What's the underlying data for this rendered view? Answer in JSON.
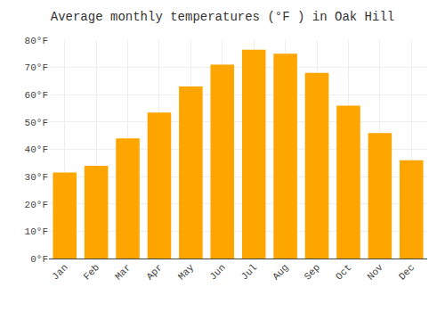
{
  "chart_data": {
    "type": "bar",
    "title": "Average monthly temperatures (°F ) in Oak Hill",
    "categories": [
      "Jan",
      "Feb",
      "Mar",
      "Apr",
      "May",
      "Jun",
      "Jul",
      "Aug",
      "Sep",
      "Oct",
      "Nov",
      "Dec"
    ],
    "values": [
      31.5,
      34,
      44,
      53.5,
      63,
      71,
      76.5,
      75,
      68,
      56,
      46,
      36
    ],
    "color": "#FFA500",
    "ylim": [
      0,
      80
    ],
    "yticks": [
      {
        "value": 0,
        "label": "0°F"
      },
      {
        "value": 10,
        "label": "10°F"
      },
      {
        "value": 20,
        "label": "20°F"
      },
      {
        "value": 30,
        "label": "30°F"
      },
      {
        "value": 40,
        "label": "40°F"
      },
      {
        "value": 50,
        "label": "50°F"
      },
      {
        "value": 60,
        "label": "60°F"
      },
      {
        "value": 70,
        "label": "70°F"
      },
      {
        "value": 80,
        "label": "80°F"
      }
    ],
    "grid": true
  }
}
